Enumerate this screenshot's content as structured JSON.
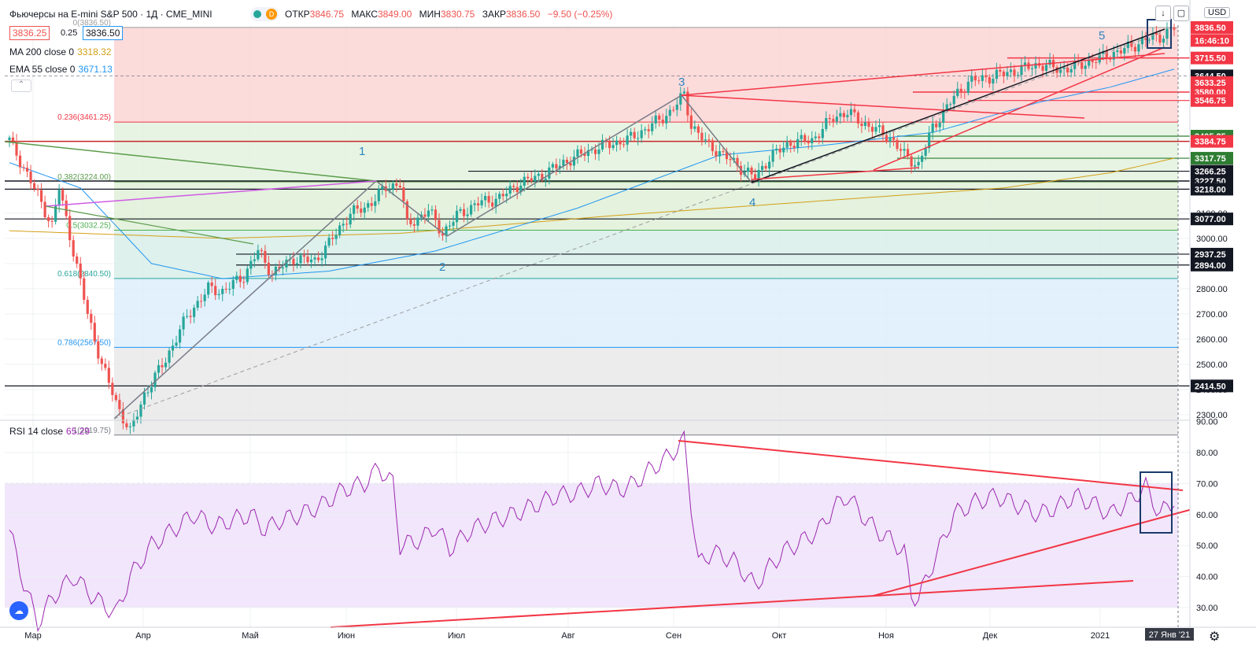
{
  "header": {
    "title": "Фьючерсы на E-mini S&P 500 · 1Д · CME_MINI",
    "ohlc": [
      {
        "label": "ОТКР",
        "value": "3846.75"
      },
      {
        "label": "МАКС",
        "value": "3849.00"
      },
      {
        "label": "МИН",
        "value": "3830.75"
      },
      {
        "label": "ЗАКР",
        "value": "3836.50"
      },
      {
        "label": "",
        "value": "−9.50 (−0.25%)"
      }
    ],
    "bid": "3836.25",
    "spread": "0.25",
    "ask": "3836.50",
    "currency": "USD"
  },
  "indicators": {
    "ma200": {
      "label": "MA 200 close 0",
      "value": "3318.32",
      "color": "#d4a017"
    },
    "ema55": {
      "label": "EMA 55 close 0",
      "value": "3671.13",
      "color": "#2196f3"
    },
    "rsi": {
      "label": "RSI 14 close",
      "value": "65.29",
      "color": "#9c27b0"
    }
  },
  "colors": {
    "up": "#26a69a",
    "down": "#ef5350",
    "trend": "#f23645",
    "grid": "#eef0f3"
  },
  "chart_data": [
    {
      "type": "candlestick",
      "y_axis": {
        "ticks": [
          "2300.00",
          "2400.00",
          "2500.00",
          "2600.00",
          "2700.00",
          "2800.00",
          "2900.00",
          "3000.00",
          "3100.00"
        ],
        "price_labels": [
          {
            "text": "3836.50",
            "value": 3836.5,
            "color": "#f23645"
          },
          {
            "text": "16:46:10",
            "value": 3785,
            "color": "#f23645"
          },
          {
            "text": "3715.50",
            "value": 3715.5,
            "color": "#f23645"
          },
          {
            "text": "3644.50",
            "value": 3644.5,
            "color": "#131722"
          },
          {
            "text": "3633.25",
            "value": 3618,
            "color": "#f23645"
          },
          {
            "text": "3580.00",
            "value": 3580,
            "color": "#f23645"
          },
          {
            "text": "3546.75",
            "value": 3546.75,
            "color": "#f23645"
          },
          {
            "text": "3405.25",
            "value": 3405.25,
            "color": "#2e7d32"
          },
          {
            "text": "3384.75",
            "value": 3384.75,
            "color": "#f23645"
          },
          {
            "text": "3317.75",
            "value": 3317.75,
            "color": "#2e7d32"
          },
          {
            "text": "3266.25",
            "value": 3266.25,
            "color": "#131722"
          },
          {
            "text": "3227.50",
            "value": 3227.5,
            "color": "#131722"
          },
          {
            "text": "3218.00",
            "value": 3195,
            "color": "#131722"
          },
          {
            "text": "3077.00",
            "value": 3077,
            "color": "#131722"
          },
          {
            "text": "2937.25",
            "value": 2937.25,
            "color": "#131722"
          },
          {
            "text": "2894.00",
            "value": 2894,
            "color": "#131722"
          },
          {
            "text": "2414.50",
            "value": 2414.5,
            "color": "#131722"
          }
        ]
      },
      "x_axis": {
        "ticks": [
          "Мар",
          "Апр",
          "Май",
          "Июн",
          "Июл",
          "Авг",
          "Сен",
          "Окт",
          "Ноя",
          "Дек",
          "2021"
        ],
        "cursor_label": "27 Янв '21"
      },
      "fib_levels": [
        {
          "label": "0(3836.50)",
          "value": 3836.5
        },
        {
          "label": "0.236(3461.25)",
          "value": 3461.25
        },
        {
          "label": "0.382(3224.00)",
          "value": 3224
        },
        {
          "label": "0.5(3032.25)",
          "value": 3032.25
        },
        {
          "label": "0.618(2840.50)",
          "value": 2840.5
        },
        {
          "label": "0.786(2567.50)",
          "value": 2567.5
        },
        {
          "label": "1(2219.75)",
          "value": 2219.75
        }
      ],
      "wave_labels": [
        "1",
        "2",
        "3",
        "4",
        "5"
      ],
      "close_keypoints": [
        [
          0,
          3390
        ],
        [
          4,
          3280
        ],
        [
          8,
          3170
        ],
        [
          12,
          3050
        ],
        [
          14,
          3200
        ],
        [
          18,
          2950
        ],
        [
          22,
          2700
        ],
        [
          26,
          2500
        ],
        [
          30,
          2350
        ],
        [
          34,
          2230
        ],
        [
          38,
          2380
        ],
        [
          44,
          2520
        ],
        [
          50,
          2690
        ],
        [
          56,
          2800
        ],
        [
          60,
          2790
        ],
        [
          66,
          2850
        ],
        [
          70,
          2950
        ],
        [
          74,
          2860
        ],
        [
          80,
          2920
        ],
        [
          86,
          2910
        ],
        [
          90,
          2980
        ],
        [
          96,
          3100
        ],
        [
          100,
          3120
        ],
        [
          106,
          3200
        ],
        [
          110,
          3220
        ],
        [
          112,
          3050
        ],
        [
          118,
          3110
        ],
        [
          122,
          3020
        ],
        [
          126,
          3090
        ],
        [
          132,
          3140
        ],
        [
          138,
          3160
        ],
        [
          144,
          3220
        ],
        [
          150,
          3250
        ],
        [
          156,
          3300
        ],
        [
          162,
          3340
        ],
        [
          168,
          3370
        ],
        [
          174,
          3390
        ],
        [
          180,
          3440
        ],
        [
          186,
          3500
        ],
        [
          190,
          3570
        ],
        [
          192,
          3450
        ],
        [
          196,
          3380
        ],
        [
          200,
          3340
        ],
        [
          206,
          3280
        ],
        [
          210,
          3240
        ],
        [
          214,
          3320
        ],
        [
          220,
          3380
        ],
        [
          226,
          3390
        ],
        [
          232,
          3480
        ],
        [
          236,
          3500
        ],
        [
          240,
          3460
        ],
        [
          244,
          3430
        ],
        [
          248,
          3400
        ],
        [
          252,
          3330
        ],
        [
          256,
          3290
        ],
        [
          260,
          3440
        ],
        [
          266,
          3560
        ],
        [
          270,
          3620
        ],
        [
          276,
          3640
        ],
        [
          282,
          3660
        ],
        [
          290,
          3690
        ],
        [
          296,
          3670
        ],
        [
          300,
          3680
        ],
        [
          306,
          3710
        ],
        [
          310,
          3730
        ],
        [
          316,
          3760
        ],
        [
          320,
          3790
        ],
        [
          324,
          3800
        ],
        [
          328,
          3836
        ]
      ],
      "ma200_keypoints": [
        [
          0,
          3030
        ],
        [
          60,
          3000
        ],
        [
          110,
          3020
        ],
        [
          170,
          3090
        ],
        [
          230,
          3150
        ],
        [
          280,
          3200
        ],
        [
          310,
          3260
        ],
        [
          328,
          3318
        ]
      ],
      "ema55_keypoints": [
        [
          0,
          3300
        ],
        [
          20,
          3200
        ],
        [
          40,
          2900
        ],
        [
          60,
          2840
        ],
        [
          90,
          2870
        ],
        [
          120,
          2950
        ],
        [
          160,
          3120
        ],
        [
          200,
          3330
        ],
        [
          230,
          3370
        ],
        [
          260,
          3420
        ],
        [
          290,
          3540
        ],
        [
          310,
          3600
        ],
        [
          328,
          3671
        ]
      ]
    },
    {
      "type": "line",
      "name": "RSI 14",
      "y_axis": {
        "ticks": [
          "90.00",
          "80.00",
          "70.00",
          "60.00",
          "50.00",
          "40.00",
          "30.00"
        ],
        "range": [
          26,
          90
        ]
      },
      "bands": {
        "upper": 70,
        "lower": 30
      },
      "keypoints": [
        [
          0,
          55
        ],
        [
          4,
          38
        ],
        [
          8,
          25
        ],
        [
          12,
          33
        ],
        [
          18,
          40
        ],
        [
          24,
          33
        ],
        [
          30,
          28
        ],
        [
          34,
          40
        ],
        [
          40,
          50
        ],
        [
          46,
          55
        ],
        [
          52,
          60
        ],
        [
          58,
          56
        ],
        [
          62,
          58
        ],
        [
          68,
          60
        ],
        [
          72,
          55
        ],
        [
          76,
          58
        ],
        [
          82,
          60
        ],
        [
          88,
          63
        ],
        [
          94,
          68
        ],
        [
          100,
          70
        ],
        [
          104,
          75
        ],
        [
          108,
          70
        ],
        [
          110,
          50
        ],
        [
          116,
          52
        ],
        [
          120,
          56
        ],
        [
          124,
          49
        ],
        [
          130,
          55
        ],
        [
          136,
          58
        ],
        [
          142,
          60
        ],
        [
          148,
          63
        ],
        [
          154,
          66
        ],
        [
          160,
          67
        ],
        [
          166,
          70
        ],
        [
          172,
          68
        ],
        [
          176,
          70
        ],
        [
          180,
          74
        ],
        [
          186,
          79
        ],
        [
          190,
          84
        ],
        [
          192,
          63
        ],
        [
          194,
          44
        ],
        [
          198,
          48
        ],
        [
          204,
          45
        ],
        [
          210,
          37
        ],
        [
          214,
          43
        ],
        [
          218,
          48
        ],
        [
          224,
          52
        ],
        [
          228,
          55
        ],
        [
          232,
          62
        ],
        [
          236,
          66
        ],
        [
          240,
          60
        ],
        [
          244,
          55
        ],
        [
          248,
          52
        ],
        [
          252,
          48
        ],
        [
          254,
          34
        ],
        [
          256,
          33
        ],
        [
          260,
          44
        ],
        [
          266,
          60
        ],
        [
          272,
          64
        ],
        [
          278,
          66
        ],
        [
          284,
          63
        ],
        [
          290,
          60
        ],
        [
          296,
          63
        ],
        [
          300,
          66
        ],
        [
          306,
          63
        ],
        [
          310,
          60
        ],
        [
          316,
          65
        ],
        [
          320,
          69
        ],
        [
          324,
          60
        ],
        [
          328,
          65
        ]
      ]
    }
  ]
}
